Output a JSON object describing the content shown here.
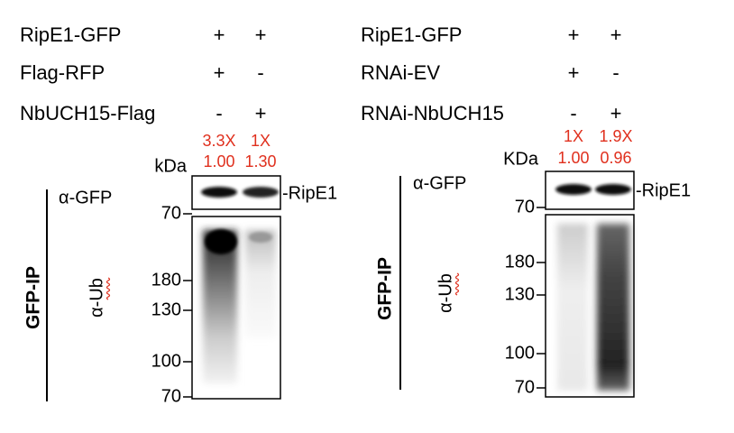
{
  "panels": [
    {
      "rows": [
        {
          "label": "RipE1-GFP",
          "lanes": [
            "+",
            "+"
          ]
        },
        {
          "label": "Flag-RFP",
          "lanes": [
            "+",
            "-"
          ]
        },
        {
          "label": "NbUCH15-Flag",
          "lanes": [
            "-",
            "+"
          ]
        }
      ],
      "quantification": [
        [
          "3.3X",
          "1X"
        ],
        [
          "1.00",
          "1.30"
        ]
      ],
      "kda_label": "kDa",
      "top_blot": {
        "antibody": "α-GFP",
        "band": "-RipE1",
        "marker": "70"
      },
      "bottom_blot": {
        "antibody": "α-Ub",
        "markers": [
          "180",
          "130",
          "100",
          "70"
        ]
      },
      "side_label": "GFP-IP"
    },
    {
      "rows": [
        {
          "label": "RipE1-GFP",
          "lanes": [
            "+",
            "+"
          ]
        },
        {
          "label": "RNAi-EV",
          "lanes": [
            "+",
            "-"
          ]
        },
        {
          "label": "RNAi-NbUCH15",
          "lanes": [
            "-",
            "+"
          ]
        }
      ],
      "quantification": [
        [
          "1X",
          "1.9X"
        ],
        [
          "1.00",
          "0.96"
        ]
      ],
      "kda_label": "KDa",
      "top_blot": {
        "antibody": "α-GFP",
        "band": "-RipE1",
        "marker": "70"
      },
      "bottom_blot": {
        "antibody": "α-Ub",
        "markers": [
          "180",
          "130",
          "100",
          "70"
        ]
      },
      "side_label": "GFP-IP"
    }
  ]
}
